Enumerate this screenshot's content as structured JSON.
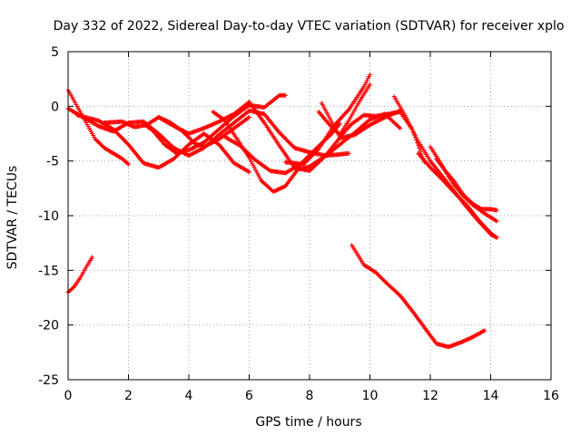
{
  "chart_data": {
    "type": "scatter",
    "title": "Day 332 of 2022, Sidereal Day-to-day VTEC variation (SDTVAR) for receiver xplo",
    "xlabel": "GPS time / hours",
    "ylabel": "SDTVAR / TECUs",
    "xlim": [
      0,
      16
    ],
    "ylim": [
      -25,
      5
    ],
    "xticks": [
      "0",
      "2",
      "4",
      "6",
      "8",
      "10",
      "12",
      "14",
      "16"
    ],
    "yticks": [
      "5",
      "0",
      "-5",
      "-10",
      "-15",
      "-20",
      "-25"
    ],
    "grid": true,
    "marker": "+",
    "color": "#ff0000",
    "series": [
      {
        "name": "s1",
        "x": [
          0.0,
          0.3,
          0.6,
          0.9,
          1.2,
          1.5,
          1.8,
          2.0
        ],
        "y": [
          1.5,
          0.0,
          -1.5,
          -3.0,
          -3.8,
          -4.3,
          -4.8,
          -5.3
        ]
      },
      {
        "name": "s2",
        "x": [
          0.0,
          0.2,
          0.4,
          0.6,
          0.8
        ],
        "y": [
          -17.0,
          -16.5,
          -15.7,
          -14.7,
          -13.8
        ]
      },
      {
        "name": "s3",
        "x": [
          0.0,
          0.5,
          1.0,
          1.5,
          2.0,
          2.5,
          3.0,
          3.5,
          4.0,
          4.5,
          5.0,
          5.5,
          6.0,
          6.5,
          7.0,
          7.5,
          8.0,
          8.5,
          9.0,
          9.3
        ],
        "y": [
          -0.2,
          -1.0,
          -1.8,
          -2.3,
          -1.5,
          -1.4,
          -2.5,
          -3.8,
          -4.5,
          -3.8,
          -2.6,
          -1.5,
          -0.4,
          -0.7,
          -2.4,
          -3.8,
          -4.2,
          -4.5,
          -4.4,
          -4.3
        ]
      },
      {
        "name": "s4",
        "x": [
          0.3,
          1.0,
          1.5,
          2.0,
          2.5,
          3.0,
          3.5,
          4.0,
          4.5,
          5.0,
          5.5,
          6.0
        ],
        "y": [
          -0.8,
          -1.3,
          -2.1,
          -3.5,
          -5.2,
          -5.6,
          -4.8,
          -3.5,
          -2.5,
          -3.5,
          -5.2,
          -6.0
        ]
      },
      {
        "name": "s5",
        "x": [
          1.2,
          1.8,
          2.2,
          2.6,
          3.0,
          3.4,
          3.8,
          4.2,
          4.5,
          5.0,
          5.5,
          6.0
        ],
        "y": [
          -1.5,
          -1.4,
          -1.9,
          -1.7,
          -1.0,
          -1.5,
          -2.3,
          -3.4,
          -3.7,
          -3.0,
          -2.0,
          -1.0
        ]
      },
      {
        "name": "s6",
        "x": [
          2.5,
          2.8,
          3.2,
          3.6,
          4.0,
          4.5,
          5.0,
          5.5,
          6.0,
          6.5,
          7.0,
          7.2
        ],
        "y": [
          -1.6,
          -2.2,
          -3.5,
          -4.3,
          -4.0,
          -3.3,
          -2.1,
          -0.9,
          0.1,
          -0.1,
          1.0,
          1.0
        ]
      },
      {
        "name": "s7",
        "x": [
          3.0,
          3.5,
          4.0,
          4.5,
          5.0,
          5.5,
          6.0,
          6.5,
          7.0,
          7.5,
          8.0,
          8.5,
          9.0,
          9.5,
          10.0,
          10.5,
          11.0
        ],
        "y": [
          -1.0,
          -1.8,
          -2.5,
          -2.0,
          -1.4,
          -0.7,
          0.4,
          -1.5,
          -3.6,
          -5.6,
          -5.9,
          -4.6,
          -2.9,
          -2.6,
          -1.7,
          -1.0,
          -0.4
        ]
      },
      {
        "name": "s8",
        "x": [
          4.8,
          5.2,
          5.6,
          6.0,
          6.4,
          6.8,
          7.2,
          7.6,
          8.0,
          8.5,
          9.0,
          9.5,
          10.0,
          10.5,
          11.0
        ],
        "y": [
          -0.5,
          -1.3,
          -3.0,
          -4.7,
          -6.8,
          -7.8,
          -7.3,
          -5.8,
          -5.5,
          -4.6,
          -3.5,
          -2.4,
          -1.2,
          -0.7,
          -2.0
        ]
      },
      {
        "name": "s9",
        "x": [
          5.2,
          5.7,
          6.2,
          6.7,
          7.2,
          7.7,
          8.2,
          8.7,
          9.0
        ],
        "y": [
          -2.8,
          -3.6,
          -4.9,
          -5.9,
          -6.1,
          -5.3,
          -3.9,
          -2.6,
          -1.6
        ]
      },
      {
        "name": "s10",
        "x": [
          7.2,
          7.8,
          8.3,
          8.8,
          9.3,
          9.8,
          10.0
        ],
        "y": [
          -5.1,
          -5.3,
          -3.9,
          -1.8,
          -0.3,
          1.8,
          2.9
        ]
      },
      {
        "name": "s11",
        "x": [
          8.3,
          8.7,
          9.0,
          9.3,
          9.6,
          10.0
        ],
        "y": [
          -0.5,
          -1.8,
          -2.6,
          -1.3,
          0.2,
          2.0
        ]
      },
      {
        "name": "s12",
        "x": [
          8.4,
          9.0,
          9.4,
          9.8,
          10.2,
          10.6,
          11.0,
          11.4,
          11.8
        ],
        "y": [
          0.3,
          -2.8,
          -1.6,
          -0.8,
          -0.9,
          -0.7,
          -0.5,
          -2.1,
          -5.1
        ]
      },
      {
        "name": "s13",
        "x": [
          9.4,
          9.8,
          10.2,
          10.6,
          11.0,
          11.4,
          11.8,
          12.2,
          12.6,
          13.0,
          13.4,
          13.8
        ],
        "y": [
          -12.7,
          -14.5,
          -15.2,
          -16.3,
          -17.3,
          -18.7,
          -20.2,
          -21.7,
          -22.0,
          -21.6,
          -21.1,
          -20.5
        ]
      },
      {
        "name": "s14",
        "x": [
          10.8,
          11.2,
          11.6,
          12.0,
          12.4,
          12.8,
          13.2,
          13.6,
          14.0,
          14.2
        ],
        "y": [
          0.9,
          -1.0,
          -3.2,
          -5.0,
          -6.4,
          -7.8,
          -9.2,
          -10.5,
          -11.7,
          -12.0
        ]
      },
      {
        "name": "s15",
        "x": [
          11.6,
          12.0,
          12.4,
          12.8,
          13.2,
          13.6,
          14.0,
          14.2
        ],
        "y": [
          -4.3,
          -5.6,
          -6.7,
          -7.9,
          -9.0,
          -10.4,
          -11.6,
          -12.0
        ]
      },
      {
        "name": "s16",
        "x": [
          12.0,
          12.3,
          12.6,
          12.8,
          13.1,
          13.4,
          13.8,
          14.2
        ],
        "y": [
          -3.7,
          -5.0,
          -6.4,
          -7.2,
          -8.2,
          -9.0,
          -9.8,
          -10.5
        ]
      },
      {
        "name": "s17",
        "x": [
          12.2,
          12.5,
          12.8,
          13.1,
          13.4,
          13.7,
          14.0,
          14.2
        ],
        "y": [
          -4.8,
          -5.9,
          -6.9,
          -8.1,
          -8.9,
          -9.4,
          -9.4,
          -9.5
        ]
      }
    ]
  }
}
